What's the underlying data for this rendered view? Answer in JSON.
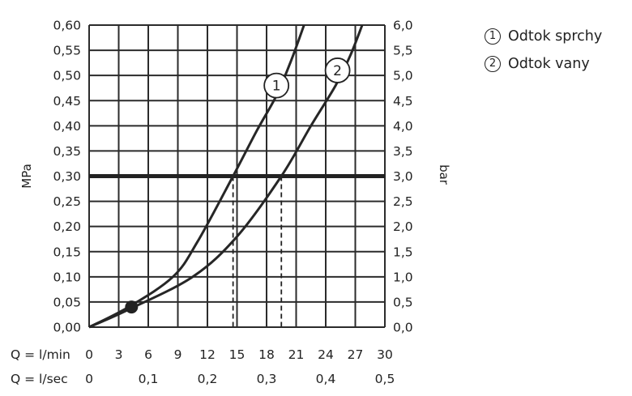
{
  "legend": [
    {
      "marker": "1",
      "label": "Odtok sprchy"
    },
    {
      "marker": "2",
      "label": "Odtok vany"
    }
  ],
  "chart_data": {
    "type": "line",
    "ylabel_left": "MPa",
    "ylabel_right": "bar",
    "xlabel_rows": [
      "Q = l/min",
      "Q = l/sec"
    ],
    "y_left_ticks": [
      "0,00",
      "0,05",
      "0,10",
      "0,15",
      "0,20",
      "0,25",
      "0,30",
      "0,35",
      "0,40",
      "0,45",
      "0,50",
      "0,55",
      "0,60"
    ],
    "y_right_ticks": [
      "0,0",
      "0,5",
      "1,0",
      "1,5",
      "2,0",
      "2,5",
      "3,0",
      "3,5",
      "4,0",
      "4,5",
      "5,0",
      "5,5",
      "6,0"
    ],
    "x_lmin_ticks": [
      "0",
      "3",
      "6",
      "9",
      "12",
      "15",
      "18",
      "21",
      "24",
      "27",
      "30"
    ],
    "x_lsec_ticks": [
      {
        "value": 0,
        "label": "0"
      },
      {
        "value": 6,
        "label": "0,1"
      },
      {
        "value": 12,
        "label": "0,2"
      },
      {
        "value": 18,
        "label": "0,3"
      },
      {
        "value": 24,
        "label": "0,4"
      },
      {
        "value": 30,
        "label": "0,5"
      }
    ],
    "xlim": [
      0,
      30
    ],
    "ylim": [
      0,
      0.6
    ],
    "grid": true,
    "reference_pressure": 0.3,
    "reference_flows": [
      14.6,
      19.5
    ],
    "operating_point": {
      "x": 4.3,
      "y": 0.04
    },
    "series": [
      {
        "marker": "1",
        "points": [
          [
            0,
            0
          ],
          [
            4,
            0.04
          ],
          [
            8.5,
            0.1
          ],
          [
            11,
            0.17
          ],
          [
            14.6,
            0.3
          ],
          [
            17,
            0.39
          ],
          [
            19,
            0.46
          ],
          [
            20.5,
            0.53
          ],
          [
            21.8,
            0.6
          ]
        ],
        "label_at": [
          19.0,
          0.48
        ]
      },
      {
        "marker": "2",
        "points": [
          [
            0,
            0
          ],
          [
            4,
            0.035
          ],
          [
            10.5,
            0.1
          ],
          [
            15,
            0.18
          ],
          [
            19.5,
            0.3
          ],
          [
            22.5,
            0.4
          ],
          [
            25,
            0.48
          ],
          [
            26.5,
            0.54
          ],
          [
            27.7,
            0.6
          ]
        ],
        "label_at": [
          25.2,
          0.51
        ]
      }
    ]
  }
}
